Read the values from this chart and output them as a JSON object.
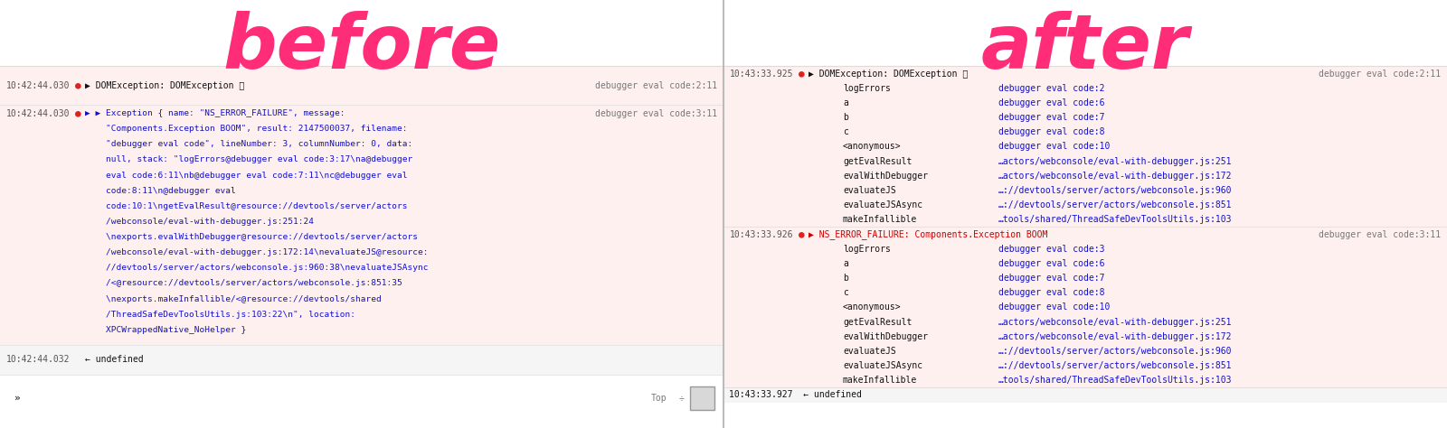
{
  "title_before": "before",
  "title_after": "after",
  "title_color": "#ff2d78",
  "bg_color": "#ffffff",
  "row_bg_error": "#fff0f0",
  "row_bg_result": "#f5f5f5",
  "separator_color": "#dddddd",
  "text_color_dark": "#111111",
  "text_color_blue": "#1111cc",
  "text_color_red": "#cc0000",
  "text_color_green": "#008800",
  "text_color_time": "#555555",
  "text_color_right": "#777777",
  "icon_error_color": "#dd2222",
  "mono_font": "DejaVu Sans Mono",
  "before_row1_time": "10:42:44.030",
  "before_row1_main": "▶ DOMException: DOMException 💥",
  "before_row1_right": "debugger eval code:2:11",
  "before_row2_time": "10:42:44.030",
  "before_row2_lines": [
    "▶ ▶ Exception { name: \"NS_ERROR_FAILURE\", message:",
    "    \"Components.Exception BOOM\", result: 2147500037, filename:",
    "    \"debugger eval code\", lineNumber: 3, columnNumber: 0, data:",
    "    null, stack: \"logErrors@debugger eval code:3:17\\na@debugger",
    "    eval code:6:11\\nb@debugger eval code:7:11\\nc@debugger eval",
    "    code:8:11\\n@debugger eval",
    "    code:10:1\\ngetEvalResult@resource://devtools/server/actors",
    "    /webconsole/eval-with-debugger.js:251:24",
    "    \\nexports.evalWithDebugger@resource://devtools/server/actors",
    "    /webconsole/eval-with-debugger.js:172:14\\nevaluateJS@resource:",
    "    //devtools/server/actors/webconsole.js:960:38\\nevaluateJSAsync",
    "    /<@resource://devtools/server/actors/webconsole.js:851:35",
    "    \\nexports.makeInfallible/<@resource://devtools/shared",
    "    /ThreadSafeDevToolsUtils.js:103:22\\n\", location:",
    "    XPCWrappedNative_NoHelper }"
  ],
  "before_row2_right": "debugger eval code:3:11",
  "before_row3_time": "10:42:44.032",
  "before_row3_main": "← undefined",
  "after_err1_time": "10:43:33.925",
  "after_err1_header": "▶ DOMException: DOMException 💥",
  "after_err1_right": "debugger eval code:2:11",
  "after_err1_stack": [
    [
      "logErrors",
      "debugger eval code:2"
    ],
    [
      "a",
      "debugger eval code:6"
    ],
    [
      "b",
      "debugger eval code:7"
    ],
    [
      "c",
      "debugger eval code:8"
    ],
    [
      "<anonymous>",
      "debugger eval code:10"
    ],
    [
      "getEvalResult",
      "…actors/webconsole/eval-with-debugger.js:251"
    ],
    [
      "evalWithDebugger",
      "…actors/webconsole/eval-with-debugger.js:172"
    ],
    [
      "evaluateJS",
      "…://devtools/server/actors/webconsole.js:960"
    ],
    [
      "evaluateJSAsync",
      "…://devtools/server/actors/webconsole.js:851"
    ],
    [
      "makeInfallible",
      "…tools/shared/ThreadSafeDevToolsUtils.js:103"
    ]
  ],
  "after_err2_time": "10:43:33.926",
  "after_err2_header": "▶ NS_ERROR_FAILURE: Components.Exception BOOM",
  "after_err2_right": "debugger eval code:3:11",
  "after_err2_stack": [
    [
      "logErrors",
      "debugger eval code:3"
    ],
    [
      "a",
      "debugger eval code:6"
    ],
    [
      "b",
      "debugger eval code:7"
    ],
    [
      "c",
      "debugger eval code:8"
    ],
    [
      "<anonymous>",
      "debugger eval code:10"
    ],
    [
      "getEvalResult",
      "…actors/webconsole/eval-with-debugger.js:251"
    ],
    [
      "evalWithDebugger",
      "…actors/webconsole/eval-with-debugger.js:172"
    ],
    [
      "evaluateJS",
      "…://devtools/server/actors/webconsole.js:960"
    ],
    [
      "evaluateJSAsync",
      "…://devtools/server/actors/webconsole.js:851"
    ],
    [
      "makeInfallible",
      "…tools/shared/ThreadSafeDevToolsUtils.js:103"
    ]
  ],
  "after_result": "10:43:33.927  ← undefined"
}
